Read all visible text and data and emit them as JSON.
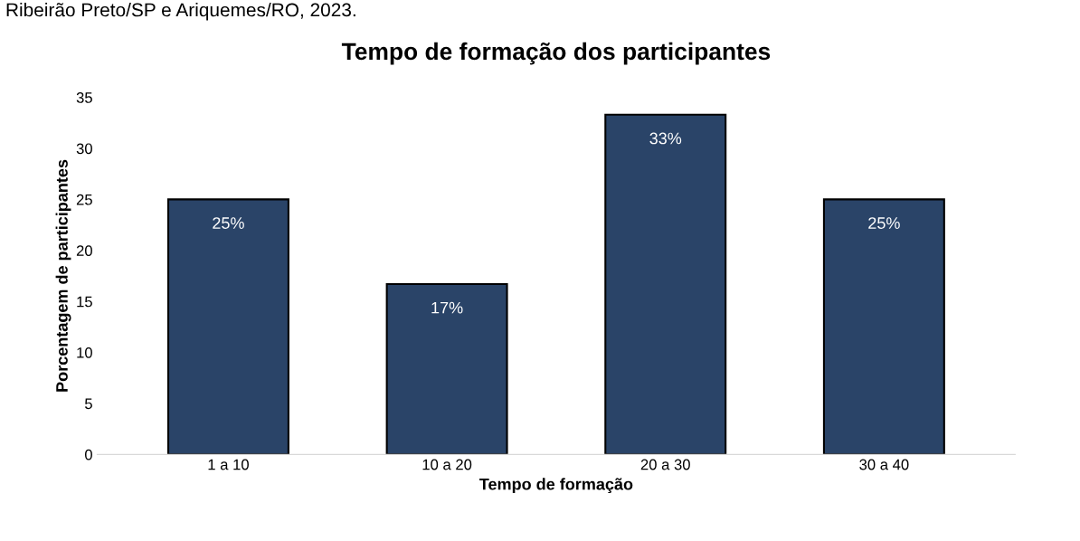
{
  "chart_data": {
    "type": "bar",
    "title": "Tempo de formação dos participantes",
    "xlabel": "Tempo de formação",
    "ylabel": "Porcentagem de participantes",
    "annotations": [
      "Ribeirão Preto/SP e Ariquemes/RO, 2023."
    ],
    "categories": [
      "1 a 10",
      "10 a 20",
      "20 a 30",
      "30 a 40"
    ],
    "values": [
      25,
      16.7,
      33.3,
      25
    ],
    "value_labels": [
      "25%",
      "17%",
      "33%",
      "25%"
    ],
    "color": "#2a4468",
    "ylim": [
      0,
      35
    ],
    "yticks": [
      0,
      5,
      10,
      15,
      20,
      25,
      30,
      35
    ],
    "grid": false,
    "legend": false
  }
}
